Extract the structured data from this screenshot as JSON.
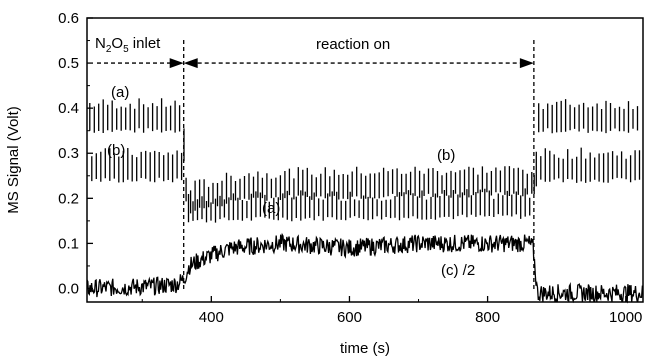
{
  "chart_data": {
    "type": "line",
    "xlabel": "time (s)",
    "ylabel": "MS Signal (Volt)",
    "xlim": [
      220,
      1025
    ],
    "ylim": [
      -0.03,
      0.6
    ],
    "x_ticks": [
      400,
      600,
      800,
      1000
    ],
    "y_ticks": [
      0.0,
      0.1,
      0.2,
      0.3,
      0.4,
      0.5,
      0.6
    ],
    "grid": false,
    "legend": "none",
    "events": [
      {
        "name": "reaction start",
        "x": 360
      },
      {
        "name": "reaction stop",
        "x": 867
      }
    ],
    "series": [
      {
        "label": "(a)",
        "style": "intermittent-spikes",
        "baseline": [
          [
            220,
            0.35
          ],
          [
            358,
            0.35
          ],
          [
            366,
            0.15
          ],
          [
            500,
            0.155
          ],
          [
            866,
            0.16
          ],
          [
            872,
            0.35
          ],
          [
            1025,
            0.35
          ]
        ],
        "spike_top": [
          [
            220,
            0.41
          ],
          [
            358,
            0.41
          ],
          [
            366,
            0.2
          ],
          [
            500,
            0.205
          ],
          [
            866,
            0.21
          ],
          [
            872,
            0.41
          ],
          [
            1025,
            0.41
          ]
        ],
        "spike_spacing_s": 6.5
      },
      {
        "label": "(b)",
        "style": "intermittent-spikes",
        "baseline": [
          [
            220,
            0.24
          ],
          [
            358,
            0.24
          ],
          [
            366,
            0.17
          ],
          [
            450,
            0.2
          ],
          [
            866,
            0.21
          ],
          [
            872,
            0.24
          ],
          [
            1025,
            0.24
          ]
        ],
        "spike_top": [
          [
            220,
            0.3
          ],
          [
            358,
            0.3
          ],
          [
            366,
            0.225
          ],
          [
            450,
            0.255
          ],
          [
            866,
            0.265
          ],
          [
            872,
            0.3
          ],
          [
            1025,
            0.3
          ]
        ],
        "spike_spacing_s": 6.5
      },
      {
        "label": "(c) /2",
        "style": "noisy-line",
        "points": [
          [
            220,
            0.0
          ],
          [
            320,
            0.005
          ],
          [
            350,
            0.01
          ],
          [
            360,
            0.02
          ],
          [
            368,
            0.05
          ],
          [
            380,
            0.06
          ],
          [
            410,
            0.08
          ],
          [
            430,
            0.09
          ],
          [
            500,
            0.1
          ],
          [
            600,
            0.09
          ],
          [
            700,
            0.1
          ],
          [
            800,
            0.1
          ],
          [
            860,
            0.1
          ],
          [
            866,
            0.09
          ],
          [
            872,
            -0.01
          ],
          [
            1025,
            -0.01
          ]
        ],
        "noise_amplitude": 0.02
      }
    ],
    "annotations": [
      {
        "name": "inlet",
        "label_main": "N",
        "sub1": "2",
        "label_mid": "O",
        "sub2": "5",
        "label_end": " inlet"
      },
      {
        "name": "reaction",
        "text": "reaction on"
      },
      {
        "name": "a-left",
        "text": "(a)"
      },
      {
        "name": "b-left",
        "text": "(b)"
      },
      {
        "name": "a-mid",
        "text": "(a)"
      },
      {
        "name": "b-right",
        "text": "(b)"
      },
      {
        "name": "c-label",
        "text": "(c) /2"
      }
    ]
  }
}
